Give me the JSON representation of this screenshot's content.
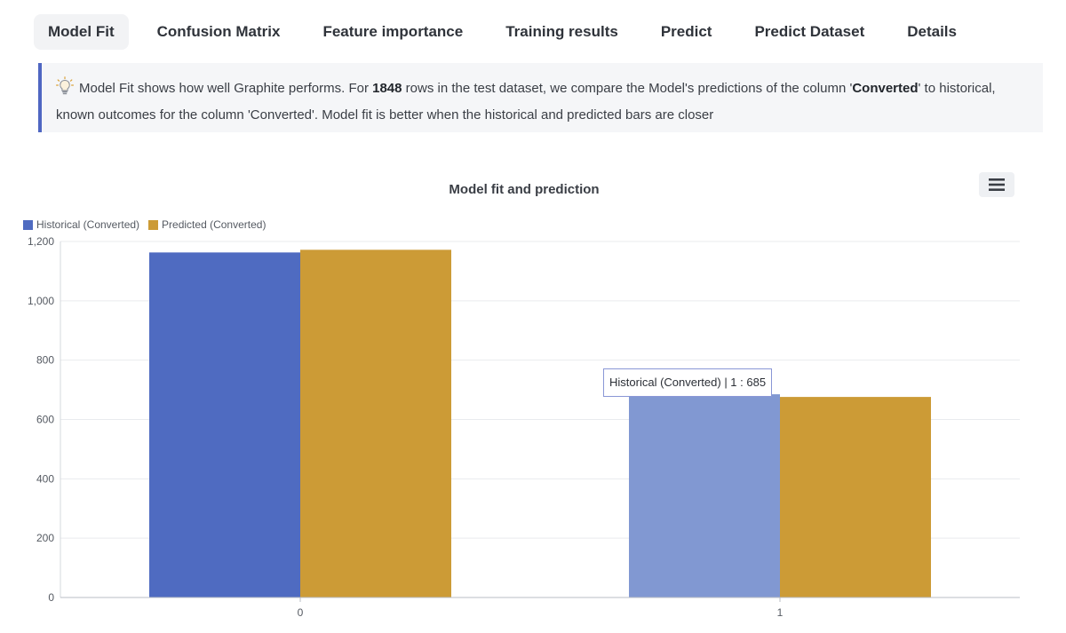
{
  "tabs": [
    {
      "label": "Model Fit",
      "active": true
    },
    {
      "label": "Confusion Matrix"
    },
    {
      "label": "Feature importance"
    },
    {
      "label": "Training results"
    },
    {
      "label": "Predict"
    },
    {
      "label": "Predict Dataset"
    },
    {
      "label": "Details"
    }
  ],
  "callout": {
    "icon": "lightbulb-icon",
    "text_1": "Model Fit shows how well Graphite performs. For ",
    "rows": "1848",
    "text_2": " rows in the test dataset, we compare the Model's predictions of the column '",
    "column": "Converted",
    "text_3": "' to historical, known outcomes for the column 'Converted'. Model fit is better when the historical and predicted bars are closer"
  },
  "chart_menu_icon": "hamburger-menu-icon",
  "tooltip": {
    "text": "Historical (Converted) | 1 : 685"
  },
  "chart_data": {
    "type": "bar",
    "title": "Model fit and prediction",
    "categories": [
      "0",
      "1"
    ],
    "series": [
      {
        "name": "Historical (Converted)",
        "values": [
          1163,
          685
        ],
        "color": "#4f6bc1",
        "highlight_color": "#8198d2"
      },
      {
        "name": "Predicted (Converted)",
        "values": [
          1172,
          676
        ],
        "color": "#cc9b36"
      }
    ],
    "ylim": [
      0,
      1200
    ],
    "yticks": [
      0,
      200,
      400,
      600,
      800,
      1000,
      1200
    ],
    "ytick_labels": [
      "0",
      "200",
      "400",
      "600",
      "800",
      "1,000",
      "1,200"
    ],
    "legend": "top-left",
    "grid": true,
    "highlighted": {
      "series": 0,
      "category": 1
    }
  }
}
